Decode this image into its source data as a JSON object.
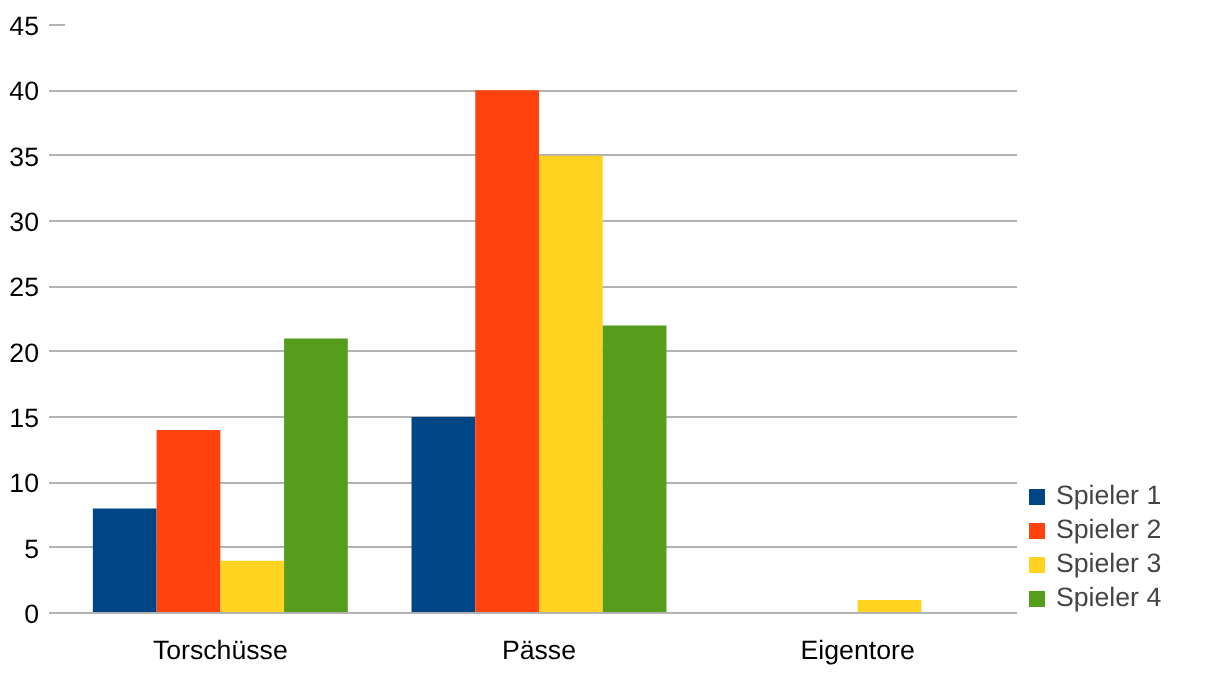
{
  "chart_data": {
    "type": "bar",
    "categories": [
      "Torschüsse",
      "Pässe",
      "Eigentore"
    ],
    "series": [
      {
        "name": "Spieler 1",
        "color": "#004586",
        "values": [
          8,
          15,
          0
        ]
      },
      {
        "name": "Spieler 2",
        "color": "#ff420e",
        "values": [
          14,
          40,
          0
        ]
      },
      {
        "name": "Spieler 3",
        "color": "#ffd320",
        "values": [
          4,
          35,
          1
        ]
      },
      {
        "name": "Spieler 4",
        "color": "#579d1c",
        "values": [
          21,
          22,
          0
        ]
      }
    ],
    "ylim": [
      0,
      45
    ],
    "yticks": [
      0,
      5,
      10,
      15,
      20,
      25,
      30,
      35,
      40,
      45
    ],
    "grid": "y",
    "legend": "right"
  }
}
